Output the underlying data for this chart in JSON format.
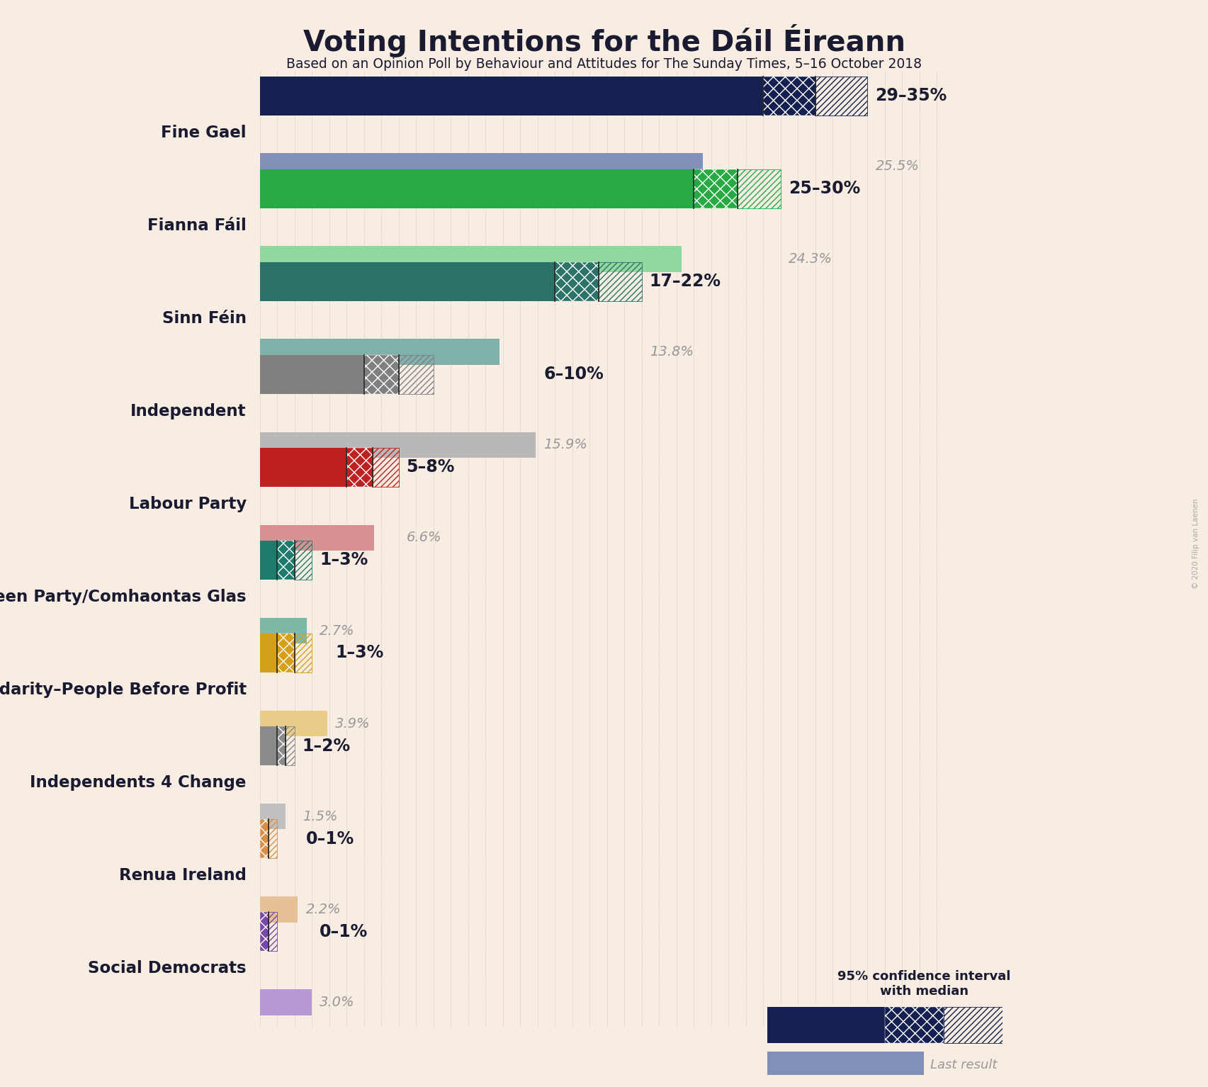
{
  "title": "Voting Intentions for the Dáil Éireann",
  "subtitle": "Based on an Opinion Poll by Behaviour and Attitudes for The Sunday Times, 5–16 October 2018",
  "copyright": "© 2020 Filip van Laenen",
  "bg": "#f8ede3",
  "parties": [
    "Fine Gael",
    "Fianna Fáil",
    "Sinn Féin",
    "Independent",
    "Labour Party",
    "Green Party/Comhaontas Glas",
    "Solidarity–People Before Profit",
    "Independents 4 Change",
    "Renua Ireland",
    "Social Democrats"
  ],
  "ci_low": [
    29,
    25,
    17,
    6,
    5,
    1,
    1,
    1,
    0,
    0
  ],
  "ci_mid": [
    32,
    27.5,
    19.5,
    8,
    6.5,
    2,
    2,
    1.5,
    0.5,
    0.5
  ],
  "ci_high": [
    35,
    30,
    22,
    10,
    8,
    3,
    3,
    2,
    1,
    1
  ],
  "last_result": [
    25.5,
    24.3,
    13.8,
    15.9,
    6.6,
    2.7,
    3.9,
    1.5,
    2.2,
    3.0
  ],
  "ci_labels": [
    "29–35%",
    "25–30%",
    "17–22%",
    "6–10%",
    "5–8%",
    "1–3%",
    "1–3%",
    "1–2%",
    "0–1%",
    "0–1%"
  ],
  "lr_labels": [
    "25.5%",
    "24.3%",
    "13.8%",
    "15.9%",
    "6.6%",
    "2.7%",
    "3.9%",
    "1.5%",
    "2.2%",
    "3.0%"
  ],
  "colors": [
    "#162050",
    "#27aa44",
    "#2d7268",
    "#808080",
    "#bf2020",
    "#1e7a6a",
    "#d4a018",
    "#8a8a8a",
    "#d89048",
    "#7848a8"
  ],
  "lr_colors": [
    "#8090b8",
    "#90d8a0",
    "#80b0aa",
    "#b8b8b8",
    "#d89090",
    "#80b8a8",
    "#e8cc88",
    "#c0c0c0",
    "#e8c098",
    "#b898d4"
  ]
}
